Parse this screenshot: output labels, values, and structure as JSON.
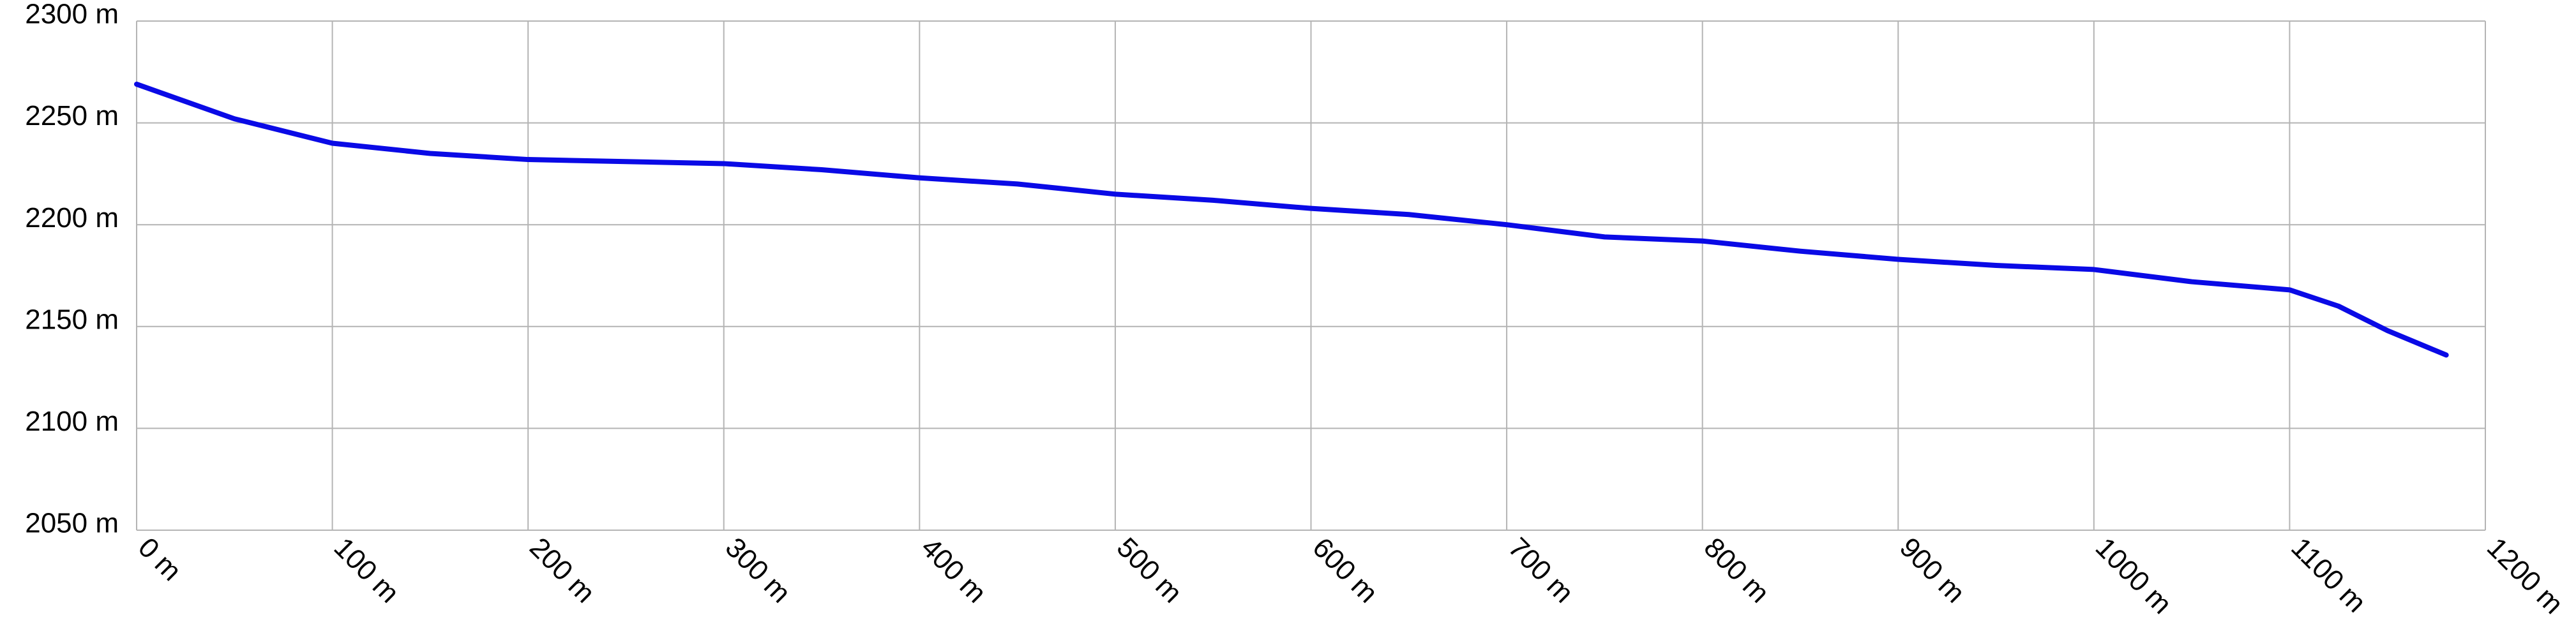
{
  "chart_data": {
    "type": "line",
    "x": [
      0,
      50,
      100,
      150,
      200,
      250,
      300,
      350,
      400,
      450,
      500,
      550,
      600,
      650,
      700,
      750,
      800,
      850,
      900,
      950,
      1000,
      1050,
      1100,
      1125,
      1150,
      1180
    ],
    "series": [
      {
        "color": "#0a0ae6",
        "values": [
          2269,
          2252,
          2240,
          2235,
          2232,
          2231,
          2230,
          2227,
          2223,
          2220,
          2215,
          2212,
          2208,
          2205,
          2200,
          2194,
          2192,
          2187,
          2183,
          2180,
          2178,
          2172,
          2168,
          2160,
          2148,
          2136
        ]
      }
    ],
    "xlim": [
      0,
      1200
    ],
    "xticks": [
      {
        "value": 0,
        "label": "0 m"
      },
      {
        "value": 100,
        "label": "100 m"
      },
      {
        "value": 200,
        "label": "200 m"
      },
      {
        "value": 300,
        "label": "300 m"
      },
      {
        "value": 400,
        "label": "400 m"
      },
      {
        "value": 500,
        "label": "500 m"
      },
      {
        "value": 600,
        "label": "600 m"
      },
      {
        "value": 700,
        "label": "700 m"
      },
      {
        "value": 800,
        "label": "800 m"
      },
      {
        "value": 900,
        "label": "900 m"
      },
      {
        "value": 1000,
        "label": "1000 m"
      },
      {
        "value": 1100,
        "label": "1100 m"
      },
      {
        "value": 1200,
        "label": "1200 m"
      }
    ],
    "ylim": [
      2050,
      2300
    ],
    "yticks": [
      {
        "value": 2050,
        "label": "2050 m"
      },
      {
        "value": 2100,
        "label": "2100 m"
      },
      {
        "value": 2150,
        "label": "2150 m"
      },
      {
        "value": 2200,
        "label": "2200 m"
      },
      {
        "value": 2250,
        "label": "2250 m"
      },
      {
        "value": 2300,
        "label": "2300 m"
      }
    ],
    "grid": true
  }
}
